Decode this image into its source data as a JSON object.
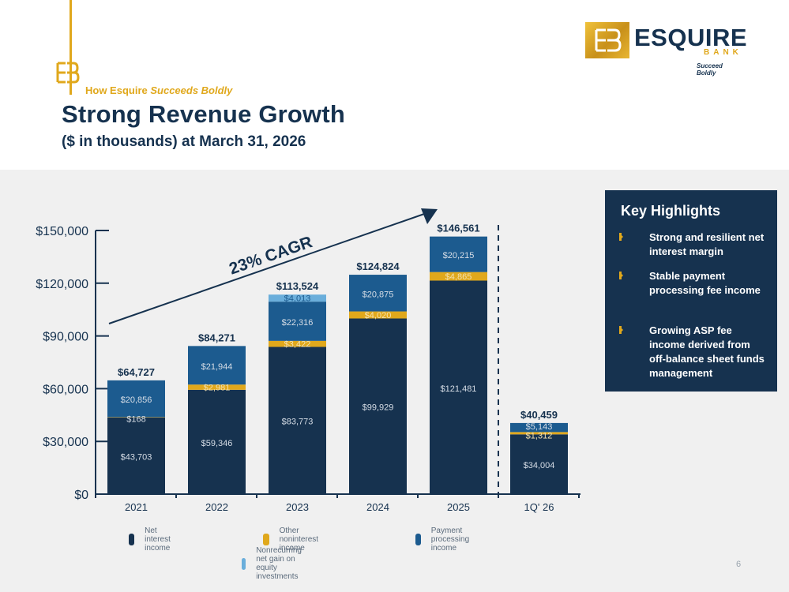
{
  "header": {
    "kicker_prefix": "How Esquire ",
    "kicker_italic": "Succeeds Boldly",
    "title": "Strong Revenue Growth",
    "subtitle": "($ in thousands) at March 31, 2026"
  },
  "logo": {
    "word": "ESQUIRE",
    "bank": "BANK",
    "tagline": "Succeed Boldly"
  },
  "highlights": {
    "title": "Key Highlights",
    "items": [
      "Strong and resilient net interest margin",
      "Stable payment processing fee income",
      "Growing ASP fee income derived from off-balance sheet funds management"
    ]
  },
  "page_number": "6",
  "colors": {
    "navy": "#16324f",
    "gold": "#e0a81c",
    "payment": "#1c5b8f",
    "nonrecurring": "#6aaedb"
  },
  "chart_data": {
    "type": "bar",
    "stacked": true,
    "categories": [
      "2021",
      "2022",
      "2023",
      "2024",
      "2025",
      "1Q' 26"
    ],
    "series": [
      {
        "name": "Net interest income",
        "color": "#16324f",
        "values": [
          43703,
          59346,
          83773,
          99929,
          121481,
          34004
        ],
        "labels": [
          "$43,703",
          "$59,346",
          "$83,773",
          "$99,929",
          "$121,481",
          "$34,004"
        ]
      },
      {
        "name": "Other noninterest income",
        "color": "#e0a81c",
        "values": [
          168,
          2981,
          3422,
          4020,
          4865,
          1312
        ],
        "labels": [
          "$168",
          "$2,981",
          "$3,422",
          "$4,020",
          "$4,865",
          "$1,312"
        ]
      },
      {
        "name": "Payment processing income",
        "color": "#1c5b8f",
        "values": [
          20856,
          21944,
          22316,
          20875,
          20215,
          5143
        ],
        "labels": [
          "$20,856",
          "$21,944",
          "$22,316",
          "$20,875",
          "$20,215",
          "$5,143"
        ]
      },
      {
        "name": "Nonrecurring net gain on equity investments",
        "color": "#6aaedb",
        "values": [
          0,
          0,
          4013,
          0,
          0,
          0
        ],
        "labels": [
          "",
          "",
          "$4,013",
          "",
          "",
          ""
        ]
      }
    ],
    "totals": [
      64727,
      84271,
      113524,
      124824,
      146561,
      40459
    ],
    "total_labels": [
      "$64,727",
      "$84,271",
      "$113,524",
      "$124,824",
      "$146,561",
      "$40,459"
    ],
    "ylim": [
      0,
      150000
    ],
    "yticks": [
      0,
      30000,
      60000,
      90000,
      120000,
      150000
    ],
    "ytick_labels": [
      "$0",
      "$30,000",
      "$60,000",
      "$90,000",
      "$120,000",
      "$150,000"
    ],
    "annotation": "23% CAGR",
    "legend_position": "bottom"
  }
}
